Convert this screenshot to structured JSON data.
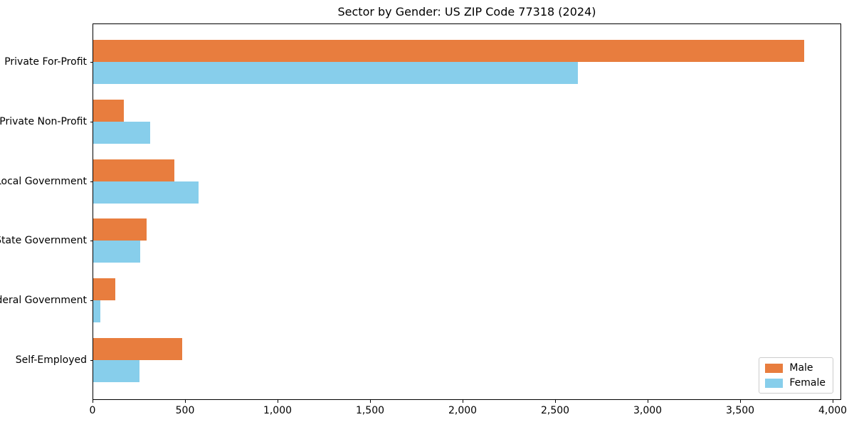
{
  "title": "Sector by Gender: US ZIP Code 77318 (2024)",
  "colors": {
    "male": "#e87d3e",
    "female": "#87ceeb",
    "spine": "#000000",
    "legend_border": "#cccccc",
    "background": "#ffffff"
  },
  "legend": {
    "items": [
      {
        "label": "Male",
        "color": "#e87d3e"
      },
      {
        "label": "Female",
        "color": "#87ceeb"
      }
    ],
    "position": "lower right"
  },
  "chart_data": {
    "type": "bar",
    "orientation": "horizontal",
    "title": "Sector by Gender: US ZIP Code 77318 (2024)",
    "categories": [
      "Private For-Profit",
      "Private Non-Profit",
      "Local Government",
      "State Government",
      "Federal Government",
      "Self-Employed"
    ],
    "series": [
      {
        "name": "Male",
        "color": "#e87d3e",
        "values": [
          3850,
          165,
          440,
          290,
          120,
          480
        ]
      },
      {
        "name": "Female",
        "color": "#87ceeb",
        "values": [
          2625,
          310,
          570,
          255,
          40,
          250
        ]
      }
    ],
    "xlabel": "",
    "ylabel": "",
    "xlim": [
      0,
      4046
    ],
    "x_ticks": [
      {
        "value": 0,
        "label": "0"
      },
      {
        "value": 500,
        "label": "500"
      },
      {
        "value": 1000,
        "label": "1,000"
      },
      {
        "value": 1500,
        "label": "1,500"
      },
      {
        "value": 2000,
        "label": "2,000"
      },
      {
        "value": 2500,
        "label": "2,500"
      },
      {
        "value": 3000,
        "label": "3,000"
      },
      {
        "value": 3500,
        "label": "3,500"
      },
      {
        "value": 4000,
        "label": "4,000"
      }
    ],
    "grid": false,
    "legend_position": "lower right"
  }
}
